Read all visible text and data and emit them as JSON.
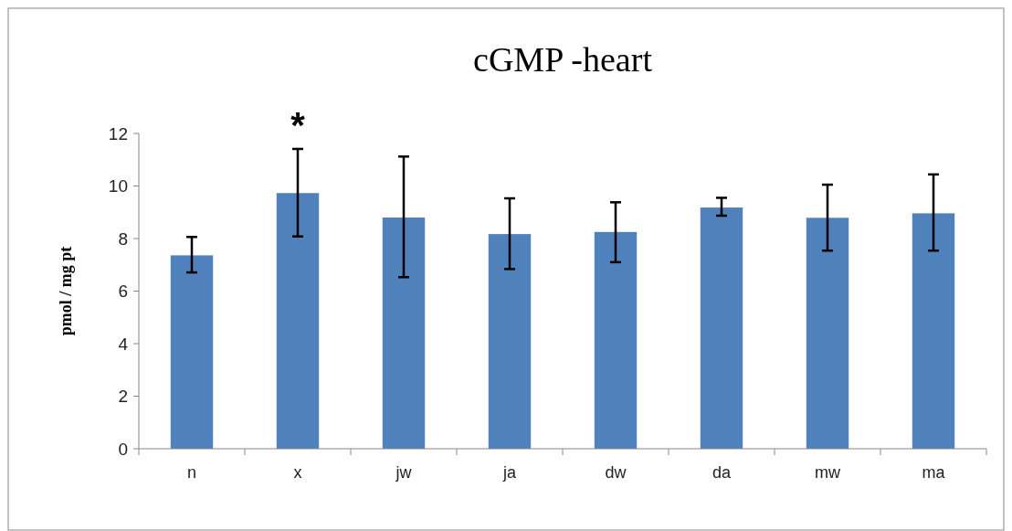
{
  "chart_data": {
    "type": "bar",
    "title": "cGMP -heart",
    "ylabel": "pmol / mg pt",
    "categories": [
      "n",
      "x",
      "jw",
      "ja",
      "dw",
      "da",
      "mw",
      "ma"
    ],
    "values": [
      7.36,
      9.73,
      8.8,
      8.17,
      8.25,
      9.18,
      8.79,
      8.96
    ],
    "errors": [
      [
        6.71,
        8.06
      ],
      [
        8.08,
        11.41
      ],
      [
        6.53,
        11.12
      ],
      [
        6.84,
        9.53
      ],
      [
        7.1,
        9.38
      ],
      [
        8.87,
        9.55
      ],
      [
        7.54,
        10.05
      ],
      [
        7.54,
        10.44
      ]
    ],
    "color": "#4f81bd",
    "ylim": [
      0,
      12
    ],
    "yticks": [
      0,
      2,
      4,
      6,
      8,
      10,
      12
    ],
    "annotations": [
      {
        "text": "*",
        "x": "x",
        "y": 11.41
      }
    ]
  }
}
